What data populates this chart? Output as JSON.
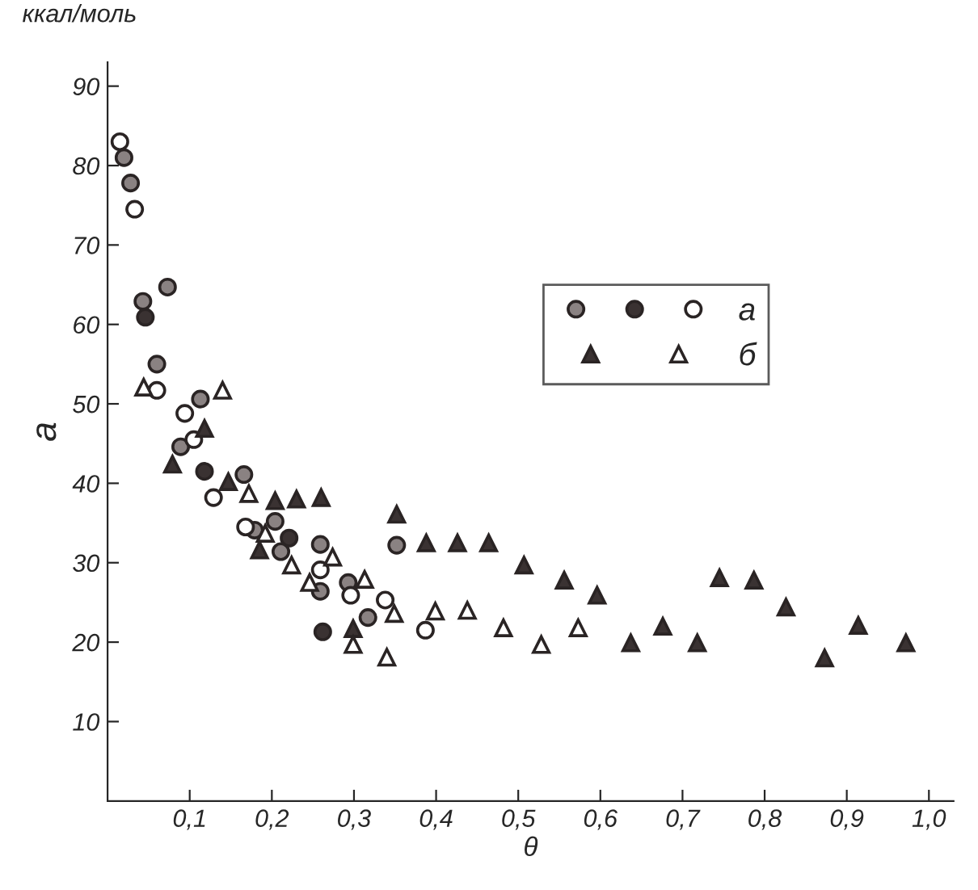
{
  "chart_data": {
    "type": "scatter",
    "xlabel": "θ",
    "ylabel": "a",
    "annotations": [
      "ккал/моль"
    ],
    "xlim": [
      0,
      1.03
    ],
    "ylim": [
      0,
      93
    ],
    "xticks": [
      {
        "value": 0.1,
        "label": "0,1"
      },
      {
        "value": 0.2,
        "label": "0,2"
      },
      {
        "value": 0.3,
        "label": "0,3"
      },
      {
        "value": 0.4,
        "label": "0,4"
      },
      {
        "value": 0.5,
        "label": "0,5"
      },
      {
        "value": 0.6,
        "label": "0,6"
      },
      {
        "value": 0.7,
        "label": "0,7"
      },
      {
        "value": 0.8,
        "label": "0,8"
      },
      {
        "value": 0.9,
        "label": "0,9"
      },
      {
        "value": 1.0,
        "label": "1,0"
      }
    ],
    "yticks": [
      10,
      20,
      30,
      40,
      50,
      60,
      70,
      80,
      90
    ],
    "grid": false,
    "legend": "top right",
    "series": [
      {
        "marker": "circle",
        "color": "#8a8282",
        "x": [
          0.02,
          0.028,
          0.073,
          0.043,
          0.06,
          0.113,
          0.089,
          0.166,
          0.352,
          0.179,
          0.204,
          0.211,
          0.259,
          0.259,
          0.293,
          0.317
        ],
        "values": [
          81.0,
          77.8,
          64.7,
          62.9,
          55.0,
          50.6,
          44.6,
          41.1,
          32.2,
          34.1,
          35.2,
          31.4,
          32.3,
          26.4,
          27.5,
          23.1
        ]
      },
      {
        "marker": "circle",
        "color": "#3a3232",
        "x": [
          0.046,
          0.118,
          0.221,
          0.262
        ],
        "values": [
          60.9,
          41.5,
          33.1,
          21.3
        ]
      },
      {
        "name": "а",
        "marker": "circle",
        "color": "#ffffff",
        "x": [
          0.015,
          0.033,
          0.06,
          0.094,
          0.105,
          0.129,
          0.168,
          0.259,
          0.296,
          0.338,
          0.387
        ],
        "values": [
          83.0,
          74.5,
          51.7,
          48.8,
          45.5,
          38.2,
          34.5,
          29.1,
          25.9,
          25.3,
          21.5
        ]
      },
      {
        "marker": "triangle",
        "color": "#3a3232",
        "x": [
          0.118,
          0.079,
          0.147,
          0.204,
          0.23,
          0.26,
          0.352,
          0.388,
          0.426,
          0.464,
          0.185,
          0.299,
          0.507,
          0.556,
          0.596,
          0.637,
          0.676,
          0.718,
          0.745,
          0.787,
          0.826,
          0.873,
          0.914,
          0.972
        ],
        "values": [
          46.9,
          42.4,
          40.2,
          37.8,
          38.0,
          38.2,
          36.1,
          32.5,
          32.5,
          32.5,
          31.6,
          21.7,
          29.7,
          27.8,
          25.9,
          19.9,
          22.0,
          19.9,
          28.1,
          27.8,
          24.4,
          18.0,
          22.1,
          19.9
        ]
      },
      {
        "name": "б",
        "marker": "triangle",
        "color": "#ffffff",
        "x": [
          0.044,
          0.14,
          0.172,
          0.192,
          0.224,
          0.274,
          0.246,
          0.313,
          0.349,
          0.299,
          0.34,
          0.399,
          0.438,
          0.482,
          0.528,
          0.573
        ],
        "values": [
          52.1,
          51.7,
          38.7,
          33.7,
          29.7,
          30.7,
          27.5,
          27.9,
          23.6,
          19.7,
          18.1,
          23.9,
          24.0,
          21.8,
          19.7,
          21.8
        ]
      }
    ]
  }
}
